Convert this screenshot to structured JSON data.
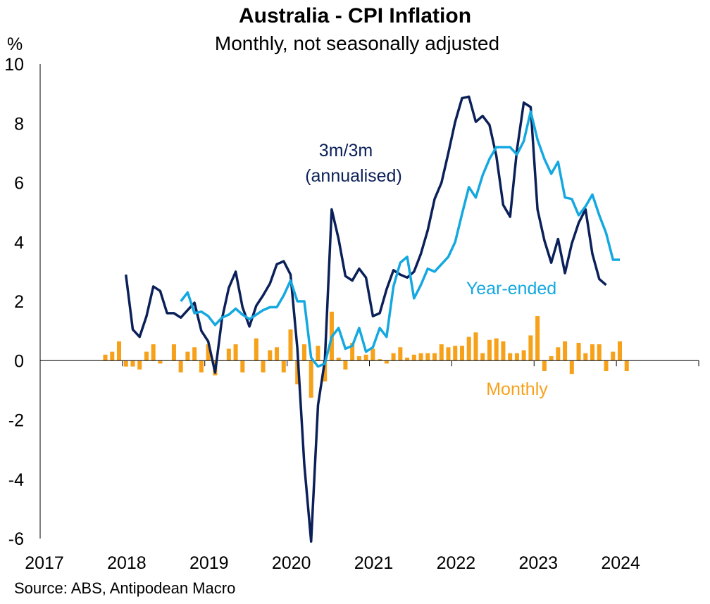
{
  "chart_data": {
    "type": "line",
    "title": "Australia - CPI Inflation",
    "subtitle": "Monthly, not seasonally adjusted",
    "ylabel": "%",
    "ylim": [
      -6,
      10
    ],
    "y_ticks": [
      "10",
      "8",
      "6",
      "4",
      "2",
      "0",
      "-2",
      "-4",
      "-6"
    ],
    "x_ticks": [
      "2017",
      "2018",
      "2019",
      "2020",
      "2021",
      "2022",
      "2023",
      "2024"
    ],
    "source": "Source: ABS, Antipodean Macro",
    "annotations": {
      "three_month_line1": "3m/3m",
      "three_month_line2": "(annualised)",
      "year_ended": "Year-ended",
      "monthly": "Monthly"
    },
    "colors": {
      "three_month": "#0b2059",
      "year_ended": "#14a8e0",
      "monthly": "#f7a11a"
    },
    "series": [
      {
        "name": "Monthly",
        "type": "bar",
        "start_year": 2017,
        "start_month": 10,
        "values": [
          0.2,
          0.3,
          0.65,
          -0.2,
          -0.2,
          -0.3,
          0.3,
          0.55,
          -0.1,
          0.0,
          0.55,
          -0.4,
          0.3,
          0.45,
          -0.4,
          0.55,
          -0.5,
          0.0,
          0.4,
          0.55,
          -0.4,
          0.0,
          0.75,
          -0.4,
          0.35,
          0.45,
          -0.4,
          1.05,
          -0.8,
          0.55,
          -1.25,
          0.5,
          -0.7,
          1.65,
          0.1,
          -0.3,
          0.6,
          0.15,
          0.2,
          0.4,
          0.05,
          -0.1,
          0.25,
          0.45,
          0.1,
          0.2,
          0.25,
          0.25,
          0.25,
          0.55,
          0.45,
          0.5,
          0.5,
          0.8,
          0.95,
          0.25,
          0.7,
          0.75,
          0.65,
          0.25,
          0.25,
          0.35,
          0.85,
          1.5,
          -0.35,
          0.15,
          0.45,
          0.65,
          -0.45,
          0.6,
          0.25,
          0.55,
          0.55,
          -0.35,
          0.3,
          0.65,
          -0.35
        ]
      },
      {
        "name": "3m/3m (annualised)",
        "type": "line",
        "start_year": 2018,
        "start_month": 1,
        "values": [
          2.9,
          1.05,
          0.8,
          1.5,
          2.5,
          2.35,
          1.6,
          1.6,
          1.45,
          1.7,
          1.95,
          1.0,
          0.65,
          -0.4,
          1.4,
          2.45,
          3.0,
          1.8,
          1.15,
          1.85,
          2.2,
          2.6,
          3.25,
          3.35,
          2.9,
          0.4,
          -3.5,
          -6.1,
          -1.5,
          0.0,
          5.1,
          4.1,
          2.85,
          2.7,
          3.1,
          2.8,
          1.5,
          1.6,
          2.4,
          3.05,
          2.9,
          2.8,
          3.0,
          3.6,
          4.4,
          5.45,
          6.0,
          7.0,
          8.05,
          8.85,
          8.9,
          8.05,
          8.25,
          7.95,
          6.9,
          5.25,
          4.85,
          7.1,
          8.7,
          8.55,
          5.1,
          4.05,
          3.3,
          4.1,
          2.95,
          3.95,
          4.65,
          5.1,
          3.6,
          2.75,
          2.55
        ]
      },
      {
        "name": "Year-ended",
        "type": "line",
        "start_year": 2018,
        "start_month": 9,
        "values": [
          2.0,
          2.3,
          1.6,
          1.65,
          1.5,
          1.2,
          1.45,
          1.55,
          1.75,
          1.55,
          1.4,
          1.55,
          1.7,
          1.8,
          1.8,
          2.2,
          2.7,
          2.0,
          2.0,
          0.1,
          -0.2,
          -0.1,
          0.8,
          1.1,
          0.4,
          0.5,
          1.1,
          0.3,
          0.45,
          1.1,
          0.8,
          2.5,
          3.3,
          3.5,
          2.1,
          2.55,
          3.1,
          3.0,
          3.25,
          3.5,
          4.0,
          4.95,
          5.85,
          5.5,
          6.25,
          6.8,
          7.2,
          7.2,
          7.2,
          6.95,
          7.4,
          8.4,
          7.45,
          6.8,
          6.3,
          6.7,
          5.5,
          5.45,
          4.9,
          5.2,
          5.6,
          4.9,
          4.3,
          3.4,
          3.4
        ]
      }
    ]
  }
}
